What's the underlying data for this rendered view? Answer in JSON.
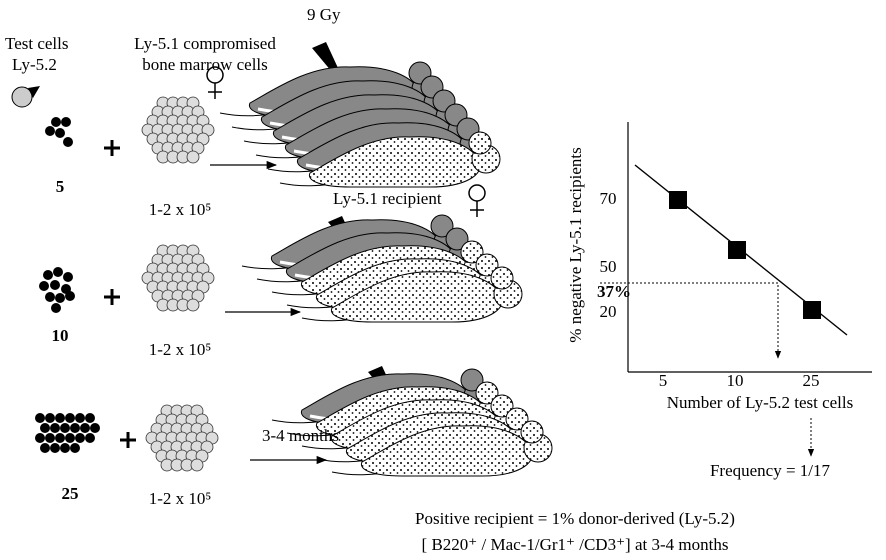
{
  "labels": {
    "dose": "9 Gy",
    "test_cells": "Test cells",
    "test_cells_type": "Ly-5.2",
    "compromised_1": "Ly-5.1 compromised",
    "compromised_2": "bone marrow cells",
    "recipient": "Ly-5.1 recipient",
    "time": "3-4 months",
    "footer_1": "Positive recipient = 1% donor-derived (Ly-5.2)",
    "footer_2": "[ B220⁺ / Mac-1/Gr1⁺ /CD3⁺] at 3-4 months"
  },
  "groups": [
    {
      "count": "5",
      "dose_cells": "1-2 x 10⁵"
    },
    {
      "count": "10",
      "dose_cells": "1-2 x 10⁵"
    },
    {
      "count": "25",
      "dose_cells": "1-2 x 10⁵"
    }
  ],
  "plot": {
    "y_label": "% negative Ly-5.1 recipients",
    "x_label": "Number of Ly-5.2 test cells",
    "yticks": [
      "70",
      "50",
      "20"
    ],
    "xticks": [
      "5",
      "10",
      "25"
    ],
    "threshold": "37%",
    "result": "Frequency = 1/17"
  }
}
